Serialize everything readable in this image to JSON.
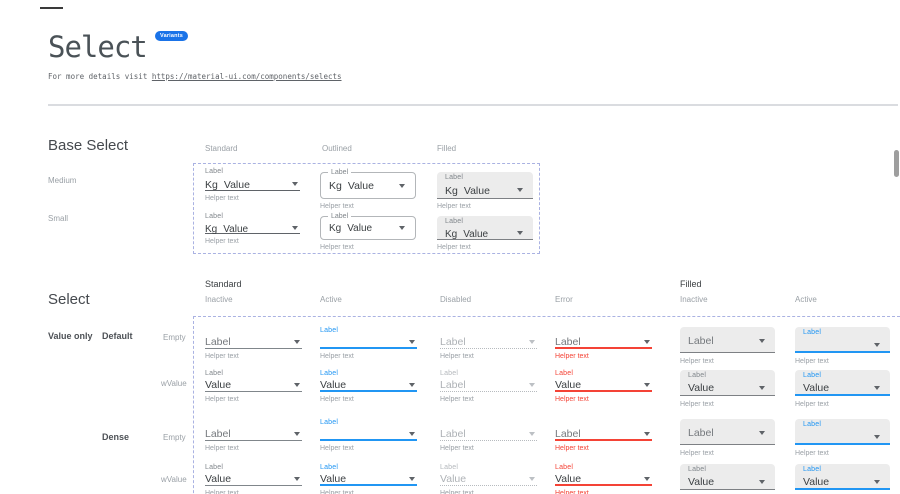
{
  "header": {
    "title": "Select",
    "badge": "Variants",
    "intro_text": "For more details visit",
    "link_text": "https://material-ui.com/components/selects"
  },
  "colors": {
    "accent_blue": "#2196f3",
    "badge_blue": "#1a73e8",
    "error_red": "#f44336",
    "filled_bg": "#ececec",
    "dashed_border": "#aab2e2"
  },
  "base_select": {
    "heading": "Base Select",
    "column_headers": [
      "Standard",
      "Outlined",
      "Filled"
    ],
    "row_labels": [
      "Medium",
      "Small"
    ],
    "component": {
      "label": "Label",
      "adornment": "Kg",
      "value": "Value",
      "helper": "Helper text"
    }
  },
  "select": {
    "heading": "Select",
    "group_headers": [
      "Standard",
      "Filled"
    ],
    "column_headers": [
      "Inactive",
      "Active",
      "Disabled",
      "Error",
      "Inactive",
      "Active"
    ],
    "row_group_labels": {
      "value_only": "Value only",
      "default": "Default",
      "dense": "Dense"
    },
    "row_labels": [
      "Empty",
      "wValue",
      "Empty",
      "wValue"
    ],
    "strings": {
      "label": "Label",
      "value": "Value",
      "helper": "Helper text"
    },
    "grid": [
      {
        "id": "default-empty",
        "cells": [
          {
            "variant": "standard",
            "state": "inactive",
            "mini": "",
            "value": "Label",
            "ph": true
          },
          {
            "variant": "standard",
            "state": "active",
            "mini": "Label",
            "value": ""
          },
          {
            "variant": "standard",
            "state": "disabled",
            "mini": "",
            "value": "Label"
          },
          {
            "variant": "standard",
            "state": "error",
            "mini": "",
            "value": "Label",
            "ph": true
          },
          {
            "variant": "filled",
            "state": "inactive",
            "mini": "",
            "value": "Label",
            "ph": true
          },
          {
            "variant": "filled",
            "state": "active",
            "mini": "Label",
            "value": ""
          }
        ]
      },
      {
        "id": "default-wvalue",
        "cells": [
          {
            "variant": "standard",
            "state": "inactive",
            "mini": "Label",
            "value": "Value"
          },
          {
            "variant": "standard",
            "state": "active",
            "mini": "Label",
            "value": "Value"
          },
          {
            "variant": "standard",
            "state": "disabled",
            "mini": "Label",
            "value": "Label"
          },
          {
            "variant": "standard",
            "state": "error",
            "mini": "Label",
            "value": "Value"
          },
          {
            "variant": "filled",
            "state": "inactive",
            "mini": "Label",
            "value": "Value"
          },
          {
            "variant": "filled",
            "state": "active",
            "mini": "Label",
            "value": "Value"
          }
        ]
      },
      {
        "id": "dense-empty",
        "cells": [
          {
            "variant": "standard",
            "state": "inactive",
            "mini": "",
            "value": "Label",
            "ph": true
          },
          {
            "variant": "standard",
            "state": "active",
            "mini": "Label",
            "value": ""
          },
          {
            "variant": "standard",
            "state": "disabled",
            "mini": "",
            "value": "Label"
          },
          {
            "variant": "standard",
            "state": "error",
            "mini": "",
            "value": "Label",
            "ph": true
          },
          {
            "variant": "filled",
            "state": "inactive",
            "mini": "",
            "value": "Label",
            "ph": true
          },
          {
            "variant": "filled",
            "state": "active",
            "mini": "Label",
            "value": ""
          }
        ]
      },
      {
        "id": "dense-wvalue",
        "cells": [
          {
            "variant": "standard",
            "state": "inactive",
            "mini": "Label",
            "value": "Value"
          },
          {
            "variant": "standard",
            "state": "active",
            "mini": "Label",
            "value": "Value"
          },
          {
            "variant": "standard",
            "state": "disabled",
            "mini": "Label",
            "value": "Value"
          },
          {
            "variant": "standard",
            "state": "error",
            "mini": "Label",
            "value": "Value"
          },
          {
            "variant": "filled",
            "state": "inactive",
            "mini": "Label",
            "value": "Value"
          },
          {
            "variant": "filled",
            "state": "active",
            "mini": "Label",
            "value": "Value"
          }
        ]
      }
    ]
  }
}
